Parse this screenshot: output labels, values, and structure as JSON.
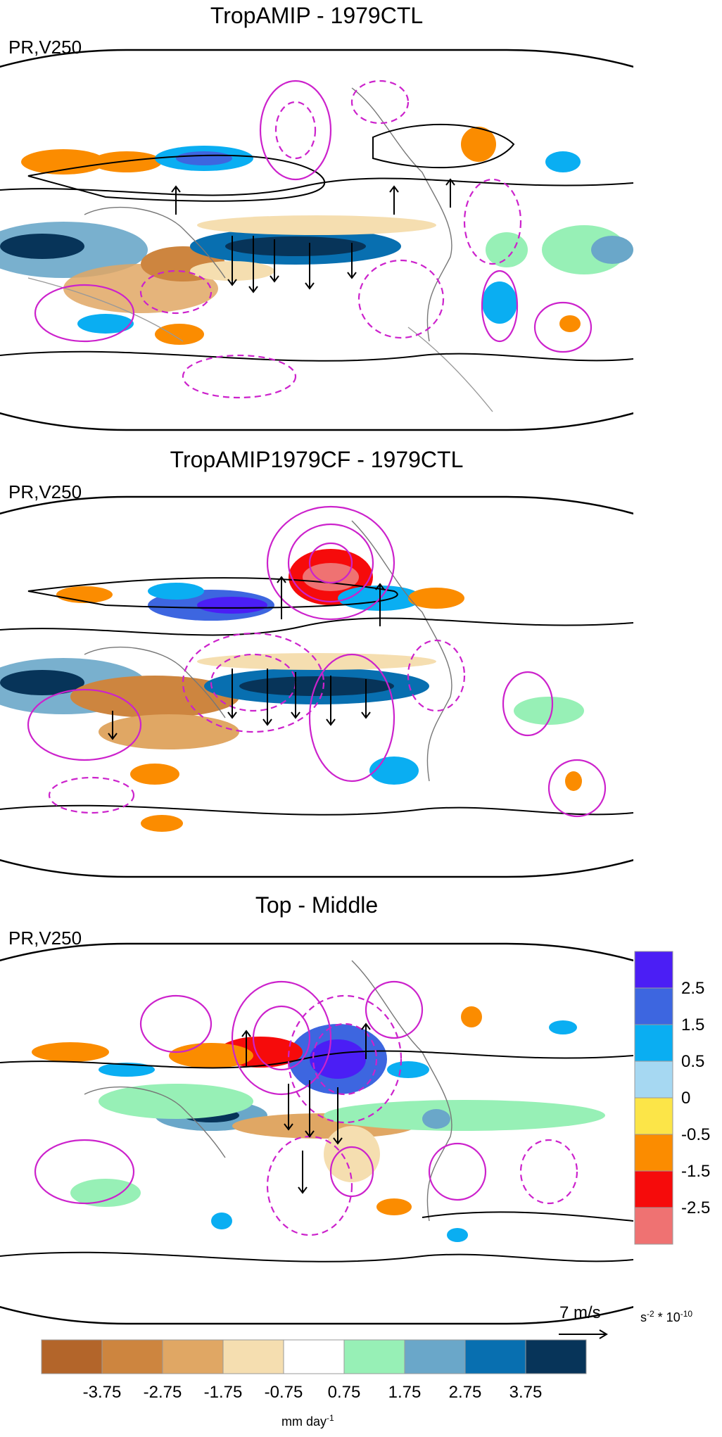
{
  "panels": [
    {
      "title": "TropAMIP - 1979CTL",
      "subtitle": "PR,V250"
    },
    {
      "title": "TropAMIP1979CF - 1979CTL",
      "subtitle": "PR,V250"
    },
    {
      "title": "Top - Middle",
      "subtitle": "PR,V250"
    }
  ],
  "vorticity_colorbar": {
    "labels": [
      "2.5",
      "1.5",
      "0.5",
      "0",
      "-0.5",
      "-1.5",
      "-2.5"
    ],
    "colors": [
      "#4b1ef5",
      "#3d66e0",
      "#0aaef2",
      "#a6d8f2",
      "#fce548",
      "#fb8c00",
      "#f60b0b",
      "#ef7272"
    ],
    "unit_base": "s",
    "unit_exp": "-2",
    "unit_tail": " * 10",
    "unit_tail_exp": "-10"
  },
  "precip_colorbar": {
    "labels": [
      "-3.75",
      "-2.75",
      "-1.75",
      "-0.75",
      "0.75",
      "1.75",
      "2.75",
      "3.75"
    ],
    "colors": [
      "#b3652a",
      "#cd853f",
      "#e0a764",
      "#f5deb0",
      "#ffffff",
      "#97f0b6",
      "#6aa7c9",
      "#086fb0",
      "#073459"
    ],
    "unit_base": "mm day",
    "unit_exp": "-1"
  },
  "reference_vector": {
    "label": "7 m/s"
  },
  "colors": {
    "contour": "#cc22cc",
    "jet": "#000000",
    "coast": "#777777"
  }
}
